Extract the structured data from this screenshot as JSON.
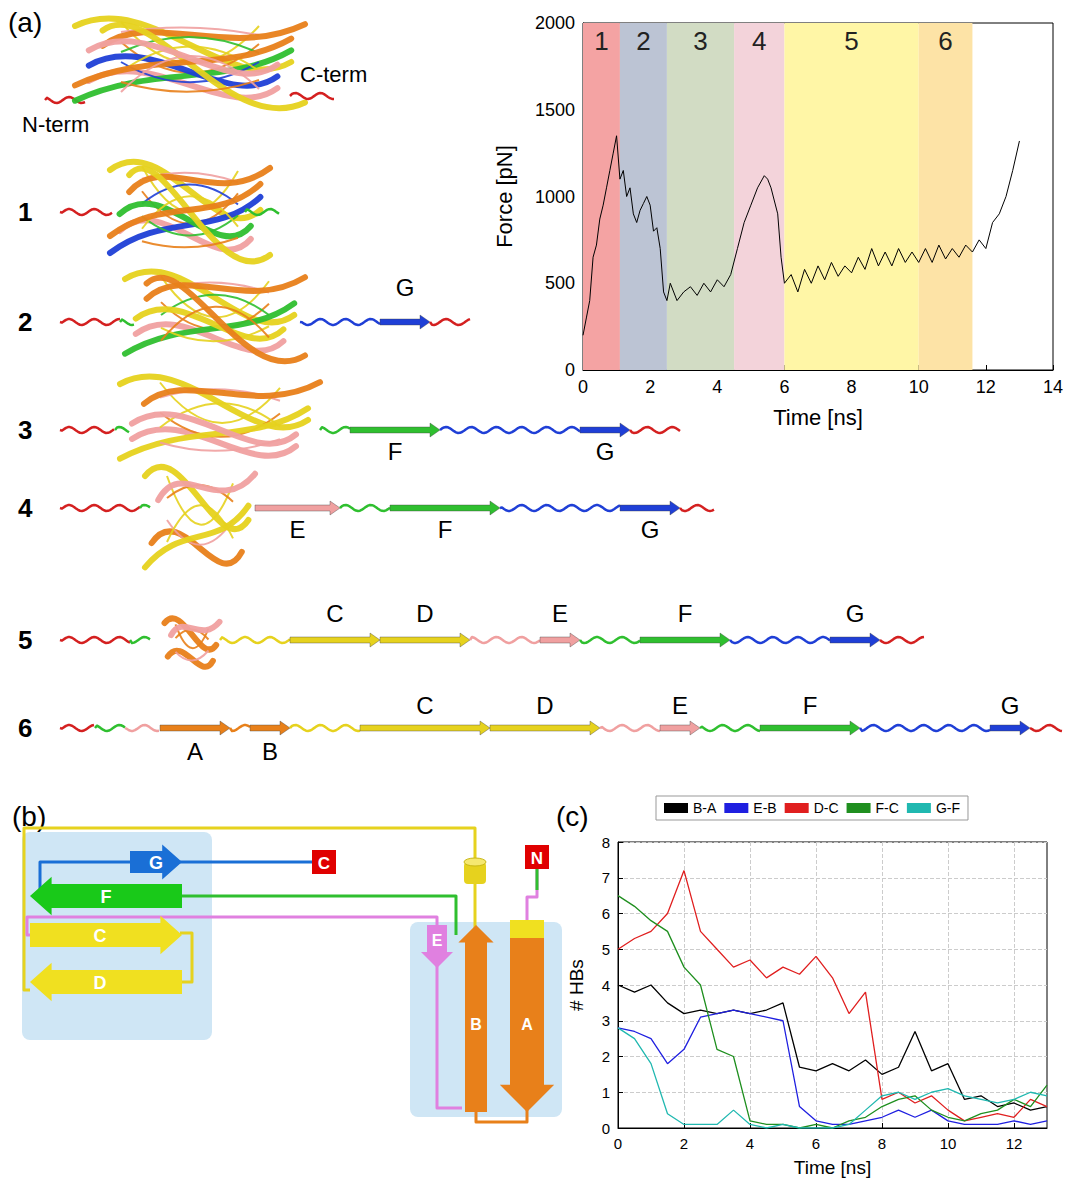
{
  "panel_labels": [
    "(a)",
    "(b)",
    "(c)"
  ],
  "structures": {
    "native": {
      "labels": [
        "N-term",
        "C-term"
      ]
    },
    "steps": [
      {
        "number": "1",
        "strands": []
      },
      {
        "number": "2",
        "strands": [
          "G"
        ]
      },
      {
        "number": "3",
        "strands": [
          "F",
          "G"
        ]
      },
      {
        "number": "4",
        "strands": [
          "E",
          "F",
          "G"
        ]
      },
      {
        "number": "5",
        "strands": [
          "C",
          "D",
          "E",
          "F",
          "G"
        ]
      },
      {
        "number": "6",
        "strands": [
          "A",
          "B",
          "C",
          "D",
          "E",
          "F",
          "G"
        ]
      }
    ]
  },
  "topology": {
    "strands": [
      "G",
      "F",
      "C",
      "D",
      "E",
      "B",
      "A"
    ],
    "termini": [
      "N",
      "C"
    ]
  },
  "chart_data": [
    {
      "type": "line",
      "xlabel": "Time [ns]",
      "ylabel": "Force [pN]",
      "color": "#000000",
      "grid": false,
      "x": [
        0,
        0.1,
        0.2,
        0.3,
        0.4,
        0.5,
        0.6,
        0.7,
        0.8,
        0.9,
        1.0,
        1.1,
        1.2,
        1.3,
        1.4,
        1.5,
        1.6,
        1.7,
        1.8,
        1.9,
        2.0,
        2.1,
        2.2,
        2.3,
        2.4,
        2.5,
        2.6,
        2.8,
        3.0,
        3.2,
        3.4,
        3.6,
        3.8,
        4.0,
        4.2,
        4.4,
        4.6,
        4.8,
        5.0,
        5.2,
        5.4,
        5.5,
        5.6,
        5.8,
        5.9,
        6.0,
        6.2,
        6.4,
        6.6,
        6.8,
        7.0,
        7.2,
        7.4,
        7.6,
        7.8,
        8.0,
        8.2,
        8.4,
        8.6,
        8.8,
        9.0,
        9.2,
        9.4,
        9.6,
        9.8,
        10.0,
        10.2,
        10.4,
        10.6,
        10.8,
        11.0,
        11.2,
        11.4,
        11.6,
        11.8,
        12.0,
        12.2,
        12.4,
        12.6,
        12.8,
        13.0
      ],
      "values": [
        200,
        300,
        400,
        650,
        720,
        870,
        950,
        1050,
        1150,
        1250,
        1350,
        1100,
        1150,
        1000,
        1050,
        900,
        850,
        920,
        960,
        1000,
        950,
        800,
        820,
        700,
        450,
        400,
        500,
        400,
        450,
        480,
        430,
        500,
        450,
        520,
        480,
        550,
        700,
        850,
        950,
        1050,
        1120,
        1100,
        1050,
        900,
        650,
        500,
        550,
        450,
        580,
        500,
        600,
        520,
        620,
        540,
        600,
        560,
        650,
        580,
        700,
        600,
        680,
        600,
        700,
        620,
        680,
        620,
        700,
        620,
        720,
        640,
        700,
        650,
        720,
        680,
        750,
        700,
        850,
        900,
        1000,
        1150,
        1320
      ],
      "xlim": [
        0,
        14
      ],
      "xticks": [
        0,
        2,
        4,
        6,
        8,
        10,
        12,
        14
      ],
      "ylim": [
        0,
        2000
      ],
      "yticks": [
        0,
        500,
        1000,
        1500,
        2000
      ],
      "regions": [
        {
          "label": "1",
          "start": 0,
          "end": 1.1,
          "color": "#f4a3a3"
        },
        {
          "label": "2",
          "start": 1.1,
          "end": 2.5,
          "color": "#bcc4d4"
        },
        {
          "label": "3",
          "start": 2.5,
          "end": 4.5,
          "color": "#d2dcc4"
        },
        {
          "label": "4",
          "start": 4.5,
          "end": 6,
          "color": "#f3d3da"
        },
        {
          "label": "5",
          "start": 6,
          "end": 10,
          "color": "#fff6a6"
        },
        {
          "label": "6",
          "start": 10,
          "end": 11.6,
          "color": "#fde3a6"
        }
      ]
    },
    {
      "type": "line",
      "xlabel": "Time [ns]",
      "ylabel": "# HBs",
      "grid": true,
      "legend": "top",
      "x": [
        0,
        0.5,
        1,
        1.5,
        2,
        2.5,
        3,
        3.5,
        4,
        4.5,
        5,
        5.5,
        6,
        6.5,
        7,
        7.5,
        8,
        8.5,
        9,
        9.5,
        10,
        10.5,
        11,
        11.5,
        12,
        12.5,
        13
      ],
      "series": [
        {
          "name": "B-A",
          "color": "#000000",
          "values": [
            4,
            3.8,
            4,
            3.5,
            3.2,
            3.3,
            3.2,
            3.3,
            3.2,
            3.3,
            3.5,
            1.7,
            1.6,
            1.8,
            1.6,
            1.9,
            1.5,
            1.7,
            2.7,
            1.6,
            1.8,
            0.8,
            0.9,
            0.6,
            0.7,
            0.5,
            0.6
          ]
        },
        {
          "name": "E-B",
          "color": "#1f1fe0",
          "values": [
            2.8,
            2.7,
            2.5,
            1.8,
            2.2,
            3.1,
            3.2,
            3.3,
            3.2,
            3.1,
            3,
            0.6,
            0.2,
            0.1,
            0.1,
            0.2,
            0.3,
            0.5,
            0.3,
            0.5,
            0.2,
            0.1,
            0.1,
            0.1,
            0.2,
            0.1,
            0.2
          ]
        },
        {
          "name": "D-C",
          "color": "#e01f1f",
          "values": [
            5,
            5.3,
            5.5,
            6,
            7.2,
            5.5,
            5,
            4.5,
            4.7,
            4.2,
            4.5,
            4.3,
            4.8,
            4.2,
            3.2,
            3.8,
            0.8,
            1,
            0.7,
            0.9,
            0.5,
            0.2,
            0.3,
            0.4,
            0.3,
            0.8,
            0.6
          ]
        },
        {
          "name": "F-C",
          "color": "#1f8f1f",
          "values": [
            6.5,
            6.2,
            5.8,
            5.5,
            4.5,
            4,
            2.2,
            2,
            0.2,
            0.1,
            0.1,
            0,
            0.1,
            0,
            0.2,
            0.3,
            0.6,
            0.8,
            0.9,
            0.5,
            0.3,
            0.2,
            0.4,
            0.5,
            0.8,
            0.6,
            1.2
          ]
        },
        {
          "name": "G-F",
          "color": "#20b8b0",
          "values": [
            2.8,
            2.5,
            1.8,
            0.4,
            0.1,
            0.1,
            0.1,
            0.5,
            0.1,
            0,
            0.1,
            0,
            0,
            0,
            0.1,
            0.5,
            0.9,
            1,
            0.8,
            1,
            1.1,
            0.9,
            0.8,
            0.7,
            0.8,
            1,
            0.9
          ]
        }
      ],
      "xlim": [
        0,
        13
      ],
      "xticks": [
        0,
        2,
        4,
        6,
        8,
        10,
        12
      ],
      "ylim": [
        0,
        8
      ],
      "yticks": [
        0,
        1,
        2,
        3,
        4,
        5,
        6,
        7,
        8
      ]
    }
  ]
}
